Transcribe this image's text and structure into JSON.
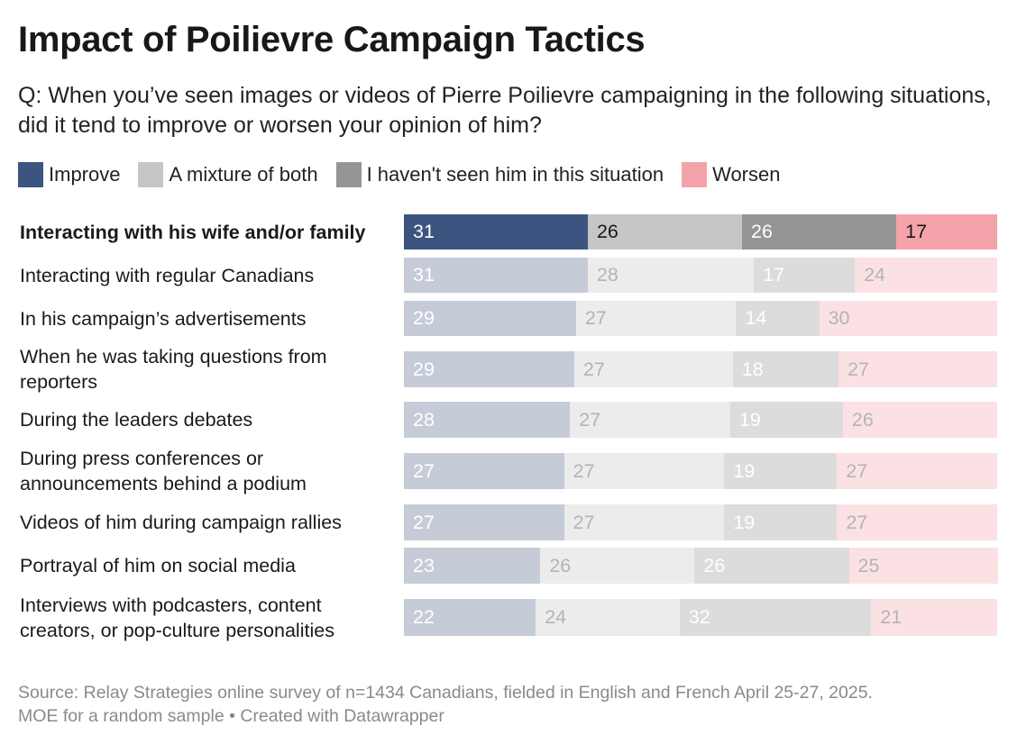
{
  "title": "Impact of Poilievre Campaign Tactics",
  "subtitle": "Q: When you’ve seen images or videos of Pierre Poilievre campaigning in the following situations, did it tend to improve or worsen your opinion of him?",
  "source_line1": "Source: Relay Strategies online survey of n=1434 Canadians, fielded in English and French April 25-27, 2025.",
  "source_line2": "MOE for a random sample  • Created with Datawrapper",
  "chart_data": {
    "type": "bar",
    "orientation": "horizontal",
    "stacked": true,
    "legend_position": "top",
    "categories": [
      "Interacting with his wife and/or family",
      "Interacting with regular Canadians",
      "In his campaign’s advertisements",
      "When he was taking questions from reporters",
      "During the leaders debates",
      "During press conferences or announcements behind a podium",
      "Videos of him during campaign rallies",
      "Portrayal of him on social media",
      "Interviews with podcasters, content creators, or pop-culture personalities"
    ],
    "highlighted_index": 0,
    "series": [
      {
        "name": "Improve",
        "color": "#3b5580",
        "values": [
          31,
          31,
          29,
          29,
          28,
          27,
          27,
          23,
          22
        ]
      },
      {
        "name": "A mixture of both",
        "color": "#c6c6c6",
        "values": [
          26,
          28,
          27,
          27,
          27,
          27,
          27,
          26,
          24
        ]
      },
      {
        "name": "I haven't seen him in this situation",
        "color": "#959595",
        "values": [
          26,
          17,
          14,
          18,
          19,
          19,
          19,
          26,
          32
        ]
      },
      {
        "name": "Worsen",
        "color": "#f4a3ab",
        "values": [
          17,
          24,
          30,
          27,
          26,
          27,
          27,
          25,
          21
        ]
      }
    ],
    "faded_colors": [
      "#c5ccd8",
      "#ececec",
      "#dcdcdc",
      "#fce1e4"
    ],
    "label_colors": {
      "highlight_dark": "#1a1a1a",
      "highlight_light": "#ffffff",
      "faded": "#b4b4b4",
      "faded_on_blue": "#ffffff"
    }
  }
}
